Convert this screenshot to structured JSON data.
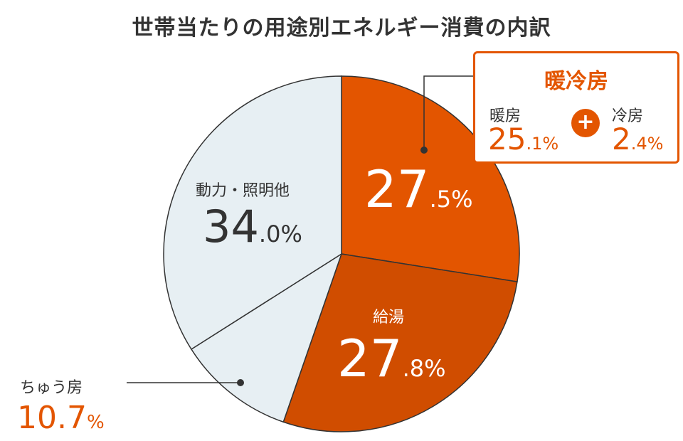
{
  "chart_data": {
    "type": "pie",
    "title": "世帯当たりの用途別エネルギー消費の内訳",
    "slices": [
      {
        "name": "暖冷房",
        "int": "27",
        "dec": ".5",
        "unit": "%",
        "value": 27.5,
        "color": "#e35500"
      },
      {
        "name": "給湯",
        "int": "27",
        "dec": ".8",
        "unit": "%",
        "value": 27.8,
        "color": "#d04d00"
      },
      {
        "name": "ちゅう房",
        "int": "10",
        "dec": ".7",
        "unit": "%",
        "value": 10.7,
        "color": "#e7eff3"
      },
      {
        "name": "動力・照明他",
        "int": "34",
        "dec": ".0",
        "unit": "%",
        "value": 34.0,
        "color": "#e7eff3"
      }
    ],
    "callout": {
      "title": "暖冷房",
      "heating": {
        "name": "暖房",
        "int": "25",
        "dec": ".1",
        "unit": "%",
        "value": 25.1
      },
      "cooling": {
        "name": "冷房",
        "int": "2",
        "dec": ".4",
        "unit": "%",
        "value": 2.4
      },
      "plus": "+"
    }
  }
}
